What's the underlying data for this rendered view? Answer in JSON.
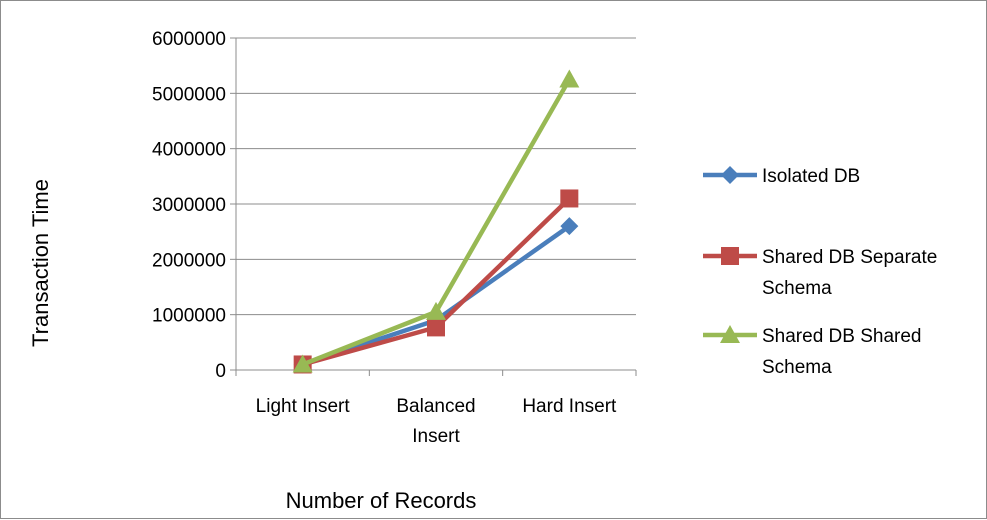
{
  "chart_data": {
    "type": "line",
    "title": "",
    "xlabel": "Number of Records",
    "ylabel": "Transaction Time",
    "categories": [
      [
        "Light Insert"
      ],
      [
        "Balanced",
        "Insert"
      ],
      [
        "Hard Insert"
      ]
    ],
    "ylim": [
      0,
      6000000
    ],
    "yticks": [
      "0",
      "1000000",
      "2000000",
      "3000000",
      "4000000",
      "5000000",
      "6000000"
    ],
    "grid": true,
    "legend_position": "right",
    "series": [
      {
        "name": [
          "Isolated DB"
        ],
        "color": "#4a7ebb",
        "marker": "diamond",
        "values": [
          100000,
          900000,
          2600000
        ]
      },
      {
        "name": [
          "Shared DB Separate",
          "Schema"
        ],
        "color": "#be4b48",
        "marker": "square",
        "values": [
          100000,
          770000,
          3100000
        ]
      },
      {
        "name": [
          "Shared DB Shared",
          "Schema"
        ],
        "color": "#98b954",
        "marker": "triangle",
        "values": [
          100000,
          1050000,
          5250000
        ]
      }
    ]
  }
}
